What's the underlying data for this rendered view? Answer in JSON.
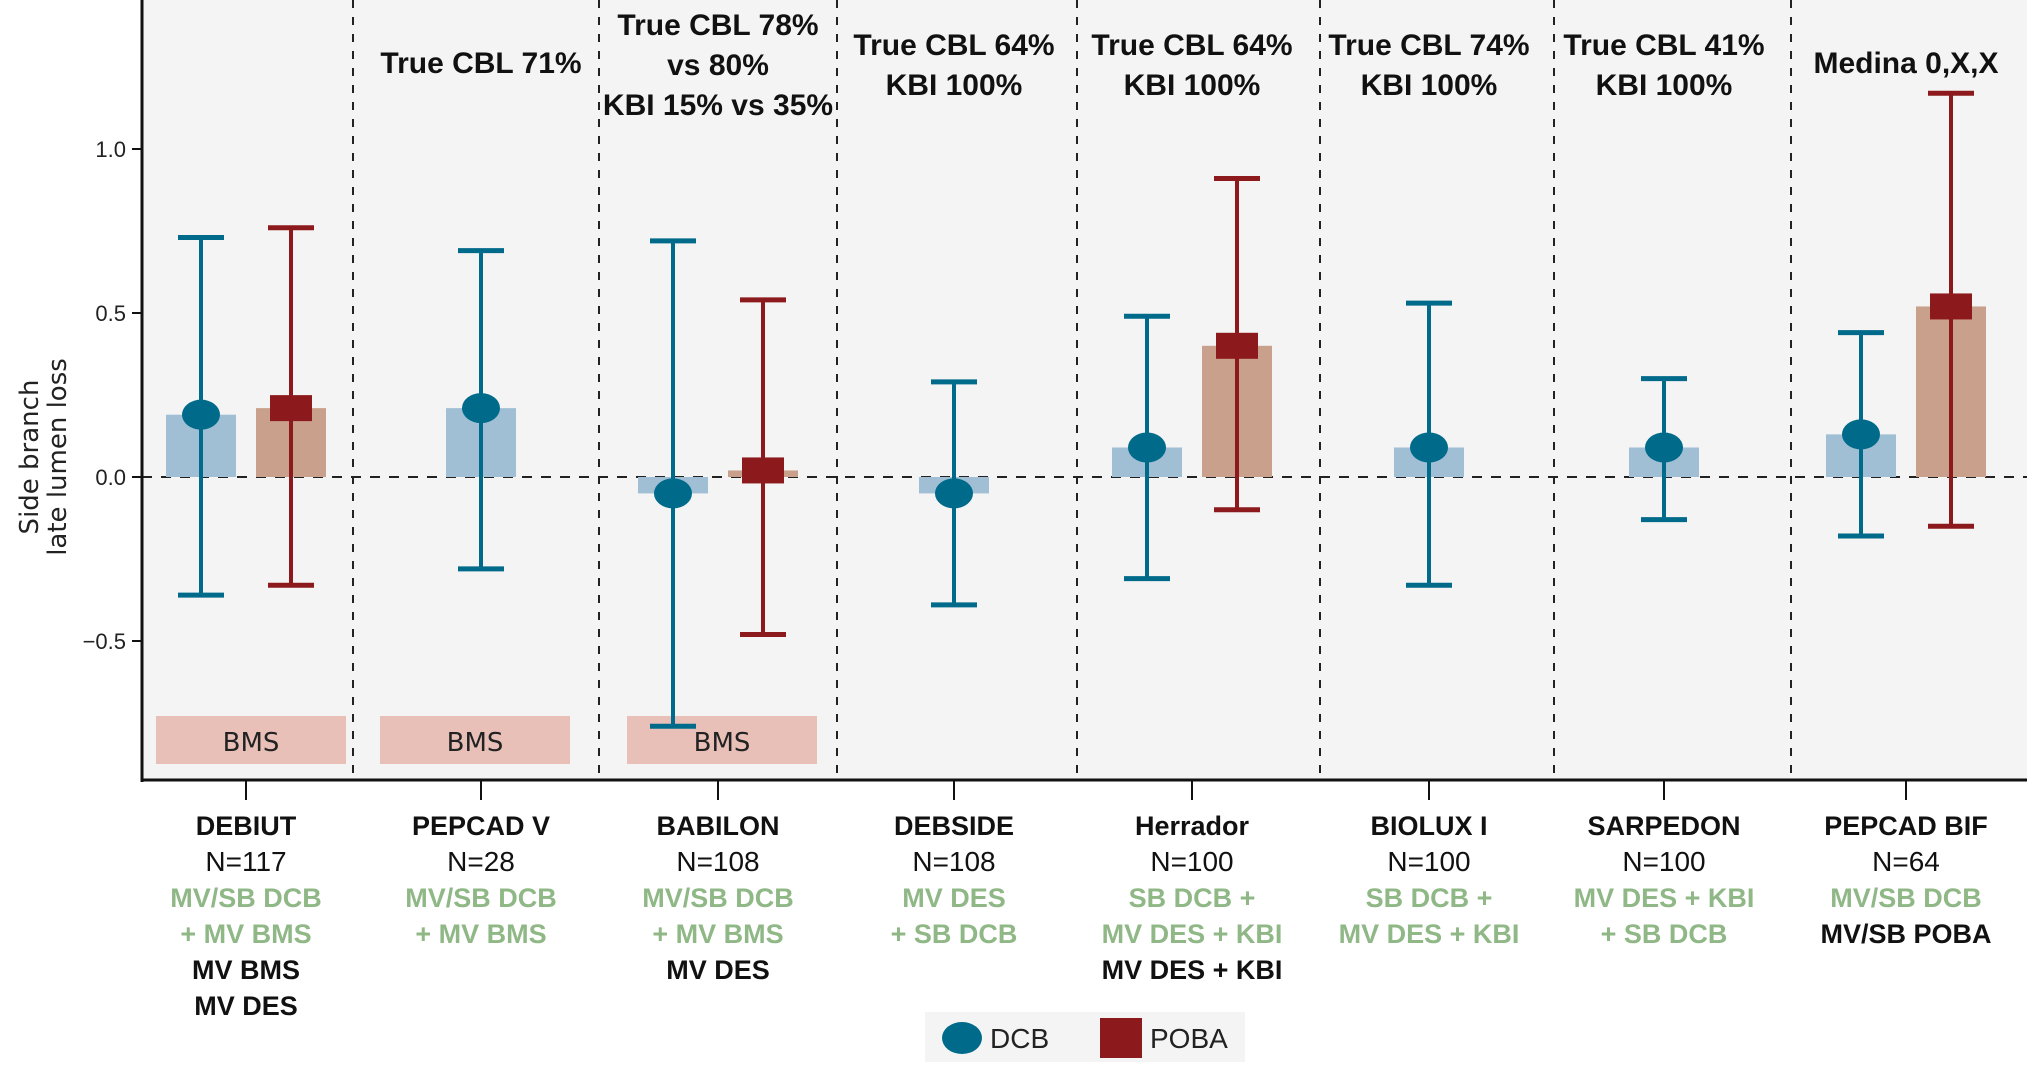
{
  "chart_data": {
    "type": "bar",
    "title": "",
    "xlabel": "",
    "ylabel": "Side branch\nlate lumen loss",
    "ylabel_lines": [
      "Side branch",
      "late lumen loss"
    ],
    "ylim": [
      -0.9,
      1.45
    ],
    "yticks": [
      -0.5,
      0.0,
      0.5,
      1.0
    ],
    "ytick_labels": [
      "−0.5",
      "0.0",
      "0.5",
      "1.0"
    ],
    "grid": false,
    "zero_line": "dashed",
    "legend": {
      "placement": "bottom-center",
      "entries": [
        {
          "name": "DCB",
          "marker": "circle",
          "color": "#006a8a"
        },
        {
          "name": "POBA",
          "marker": "square",
          "color": "#8c1a1c"
        }
      ]
    },
    "colors": {
      "dcb_marker": "#006a8a",
      "dcb_bar": "#a0bfd4",
      "poba_marker": "#8c1a1c",
      "poba_bar": "#c9a08c",
      "bms_box": "#e8c0b8",
      "panel_bg": "#f4f4f4",
      "green_text": "#8fb886"
    },
    "groups": [
      {
        "name": "DEBIUT",
        "n": "N=117",
        "header": [],
        "green_lines": [
          "MV/SB DCB",
          "+ MV BMS"
        ],
        "black_lines": [
          "MV BMS",
          "MV DES"
        ],
        "bms": "BMS",
        "dcb": {
          "mean": 0.19,
          "lower": -0.36,
          "upper": 0.73
        },
        "poba": {
          "mean": 0.21,
          "lower": -0.33,
          "upper": 0.76
        }
      },
      {
        "name": "PEPCAD V",
        "n": "N=28",
        "header": [
          "True CBL 71%"
        ],
        "green_lines": [
          "MV/SB DCB",
          "+ MV BMS"
        ],
        "black_lines": [],
        "bms": "BMS",
        "dcb": {
          "mean": 0.21,
          "lower": -0.28,
          "upper": 0.69
        },
        "poba": null
      },
      {
        "name": "BABILON",
        "n": "N=108",
        "header": [
          "True CBL 78%",
          "vs 80%",
          "KBI 15% vs 35%"
        ],
        "green_lines": [
          "MV/SB DCB",
          "+ MV BMS"
        ],
        "black_lines": [
          "MV DES"
        ],
        "bms": "BMS",
        "dcb": {
          "mean": -0.05,
          "lower": -0.76,
          "upper": 0.72
        },
        "poba": {
          "mean": 0.02,
          "lower": -0.48,
          "upper": 0.54
        }
      },
      {
        "name": "DEBSIDE",
        "n": "N=108",
        "header": [
          "True CBL 64%",
          "KBI 100%"
        ],
        "green_lines": [
          "MV DES",
          "+ SB DCB"
        ],
        "black_lines": [],
        "bms": null,
        "dcb": {
          "mean": -0.05,
          "lower": -0.39,
          "upper": 0.29
        },
        "poba": null
      },
      {
        "name": "Herrador",
        "n": "N=100",
        "header": [
          "True CBL 64%",
          "KBI 100%"
        ],
        "green_lines": [
          "SB DCB +",
          "MV DES + KBI"
        ],
        "black_lines": [
          "MV DES + KBI"
        ],
        "bms": null,
        "dcb": {
          "mean": 0.09,
          "lower": -0.31,
          "upper": 0.49
        },
        "poba": {
          "mean": 0.4,
          "lower": -0.1,
          "upper": 0.91
        }
      },
      {
        "name": "BIOLUX I",
        "n": "N=100",
        "header": [
          "True CBL 74%",
          "KBI 100%"
        ],
        "green_lines": [
          "SB DCB +",
          "MV DES + KBI"
        ],
        "black_lines": [],
        "bms": null,
        "dcb": {
          "mean": 0.09,
          "lower": -0.33,
          "upper": 0.53
        },
        "poba": null
      },
      {
        "name": "SARPEDON",
        "n": "N=100",
        "header": [
          "True CBL 41%",
          "KBI 100%"
        ],
        "green_lines": [
          "MV DES + KBI",
          "+ SB DCB"
        ],
        "black_lines": [],
        "bms": null,
        "dcb": {
          "mean": 0.09,
          "lower": -0.13,
          "upper": 0.3
        },
        "poba": null
      },
      {
        "name": "PEPCAD BIF",
        "n": "N=64",
        "header": [
          "Medina 0,X,X"
        ],
        "green_lines": [
          "MV/SB DCB"
        ],
        "black_lines": [
          "MV/SB POBA"
        ],
        "bms": null,
        "dcb": {
          "mean": 0.13,
          "lower": -0.18,
          "upper": 0.44
        },
        "poba": {
          "mean": 0.52,
          "lower": -0.15,
          "upper": 1.17
        }
      }
    ]
  }
}
